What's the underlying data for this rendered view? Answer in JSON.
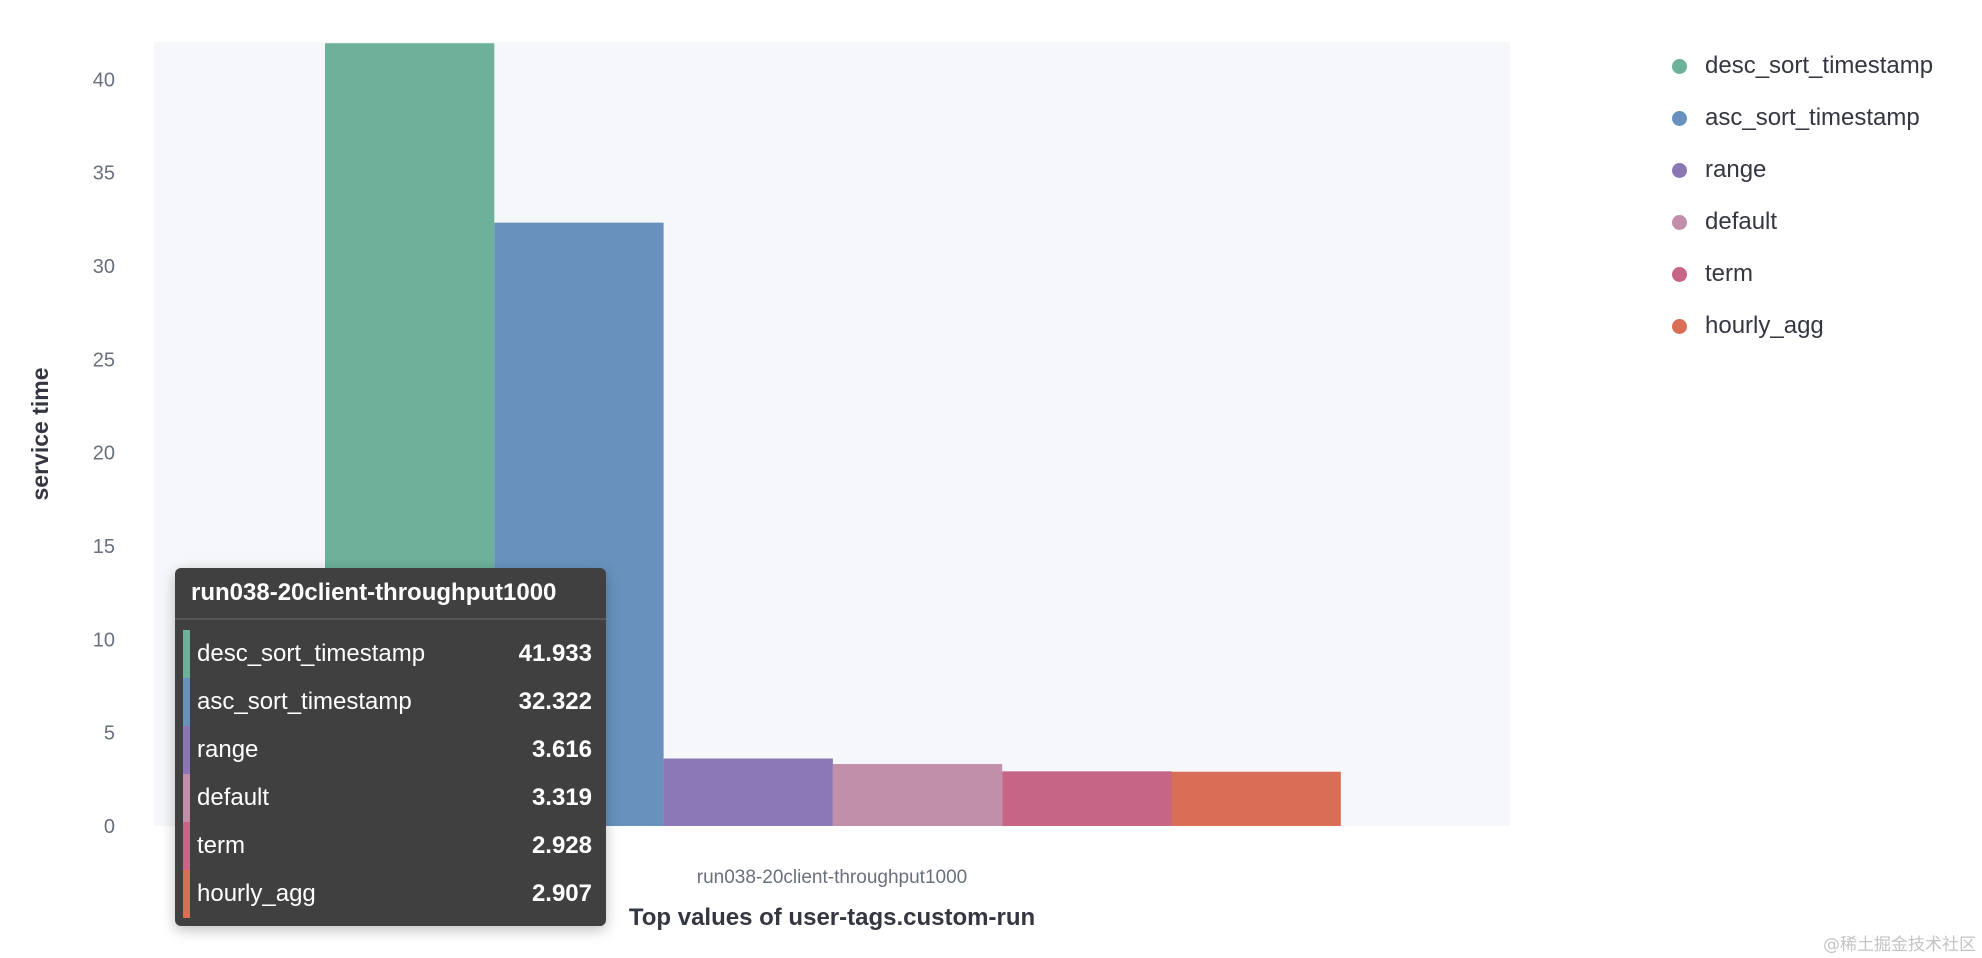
{
  "chart_data": {
    "type": "bar",
    "categories": [
      "run038-20client-throughput1000"
    ],
    "series": [
      {
        "name": "desc_sort_timestamp",
        "values": [
          41.933
        ],
        "color": "#6DB19A"
      },
      {
        "name": "asc_sort_timestamp",
        "values": [
          32.322
        ],
        "color": "#6892BD"
      },
      {
        "name": "range",
        "values": [
          3.616
        ],
        "color": "#8C77B5"
      },
      {
        "name": "default",
        "values": [
          3.319
        ],
        "color": "#C18FAA"
      },
      {
        "name": "term",
        "values": [
          2.928
        ],
        "color": "#C76586"
      },
      {
        "name": "hourly_agg",
        "values": [
          2.907
        ],
        "color": "#DA6D56"
      }
    ],
    "xlabel": "Top values of user-tags.custom-run",
    "ylabel": "service time",
    "ylim": [
      0,
      42
    ],
    "yticks": [
      "0",
      "5",
      "10",
      "15",
      "20",
      "25",
      "30",
      "35",
      "40"
    ],
    "grid": false,
    "legend_position": "right"
  },
  "tooltip": {
    "title": "run038-20client-throughput1000",
    "rows": [
      {
        "name": "desc_sort_timestamp",
        "value": "41.933",
        "color": "#6DB19A"
      },
      {
        "name": "asc_sort_timestamp",
        "value": "32.322",
        "color": "#6892BD"
      },
      {
        "name": "range",
        "value": "3.616",
        "color": "#8C77B5"
      },
      {
        "name": "default",
        "value": "3.319",
        "color": "#C18FAA"
      },
      {
        "name": "term",
        "value": "2.928",
        "color": "#C76586"
      },
      {
        "name": "hourly_agg",
        "value": "2.907",
        "color": "#DA6D56"
      }
    ]
  },
  "watermark": "@稀土掘金技术社区"
}
